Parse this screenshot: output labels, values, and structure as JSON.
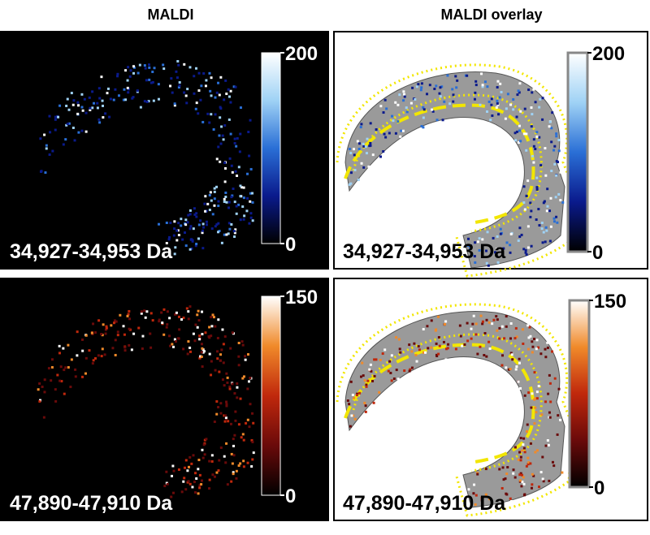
{
  "headers": [
    "MALDI",
    "MALDI overlay"
  ],
  "panels": [
    {
      "label": "34,927-34,953 Da",
      "scale_max": 200,
      "scale_min": 0,
      "overlay": false,
      "colormap": [
        "#000000",
        "#0a1a8c",
        "#2a6fd6",
        "#9fd2f5",
        "#ffffff"
      ]
    },
    {
      "label": "34,927-34,953 Da",
      "scale_max": 200,
      "scale_min": 0,
      "overlay": true,
      "colormap": [
        "#000000",
        "#0a1a8c",
        "#2a6fd6",
        "#9fd2f5",
        "#ffffff"
      ]
    },
    {
      "label": "47,890-47,910 Da",
      "scale_max": 150,
      "scale_min": 0,
      "overlay": false,
      "colormap": [
        "#000000",
        "#6a0a0a",
        "#c0280c",
        "#f08a2a",
        "#ffffff"
      ]
    },
    {
      "label": "47,890-47,910 Da",
      "scale_max": 150,
      "scale_min": 0,
      "overlay": true,
      "colormap": [
        "#000000",
        "#6a0a0a",
        "#c0280c",
        "#f08a2a",
        "#ffffff"
      ]
    }
  ]
}
